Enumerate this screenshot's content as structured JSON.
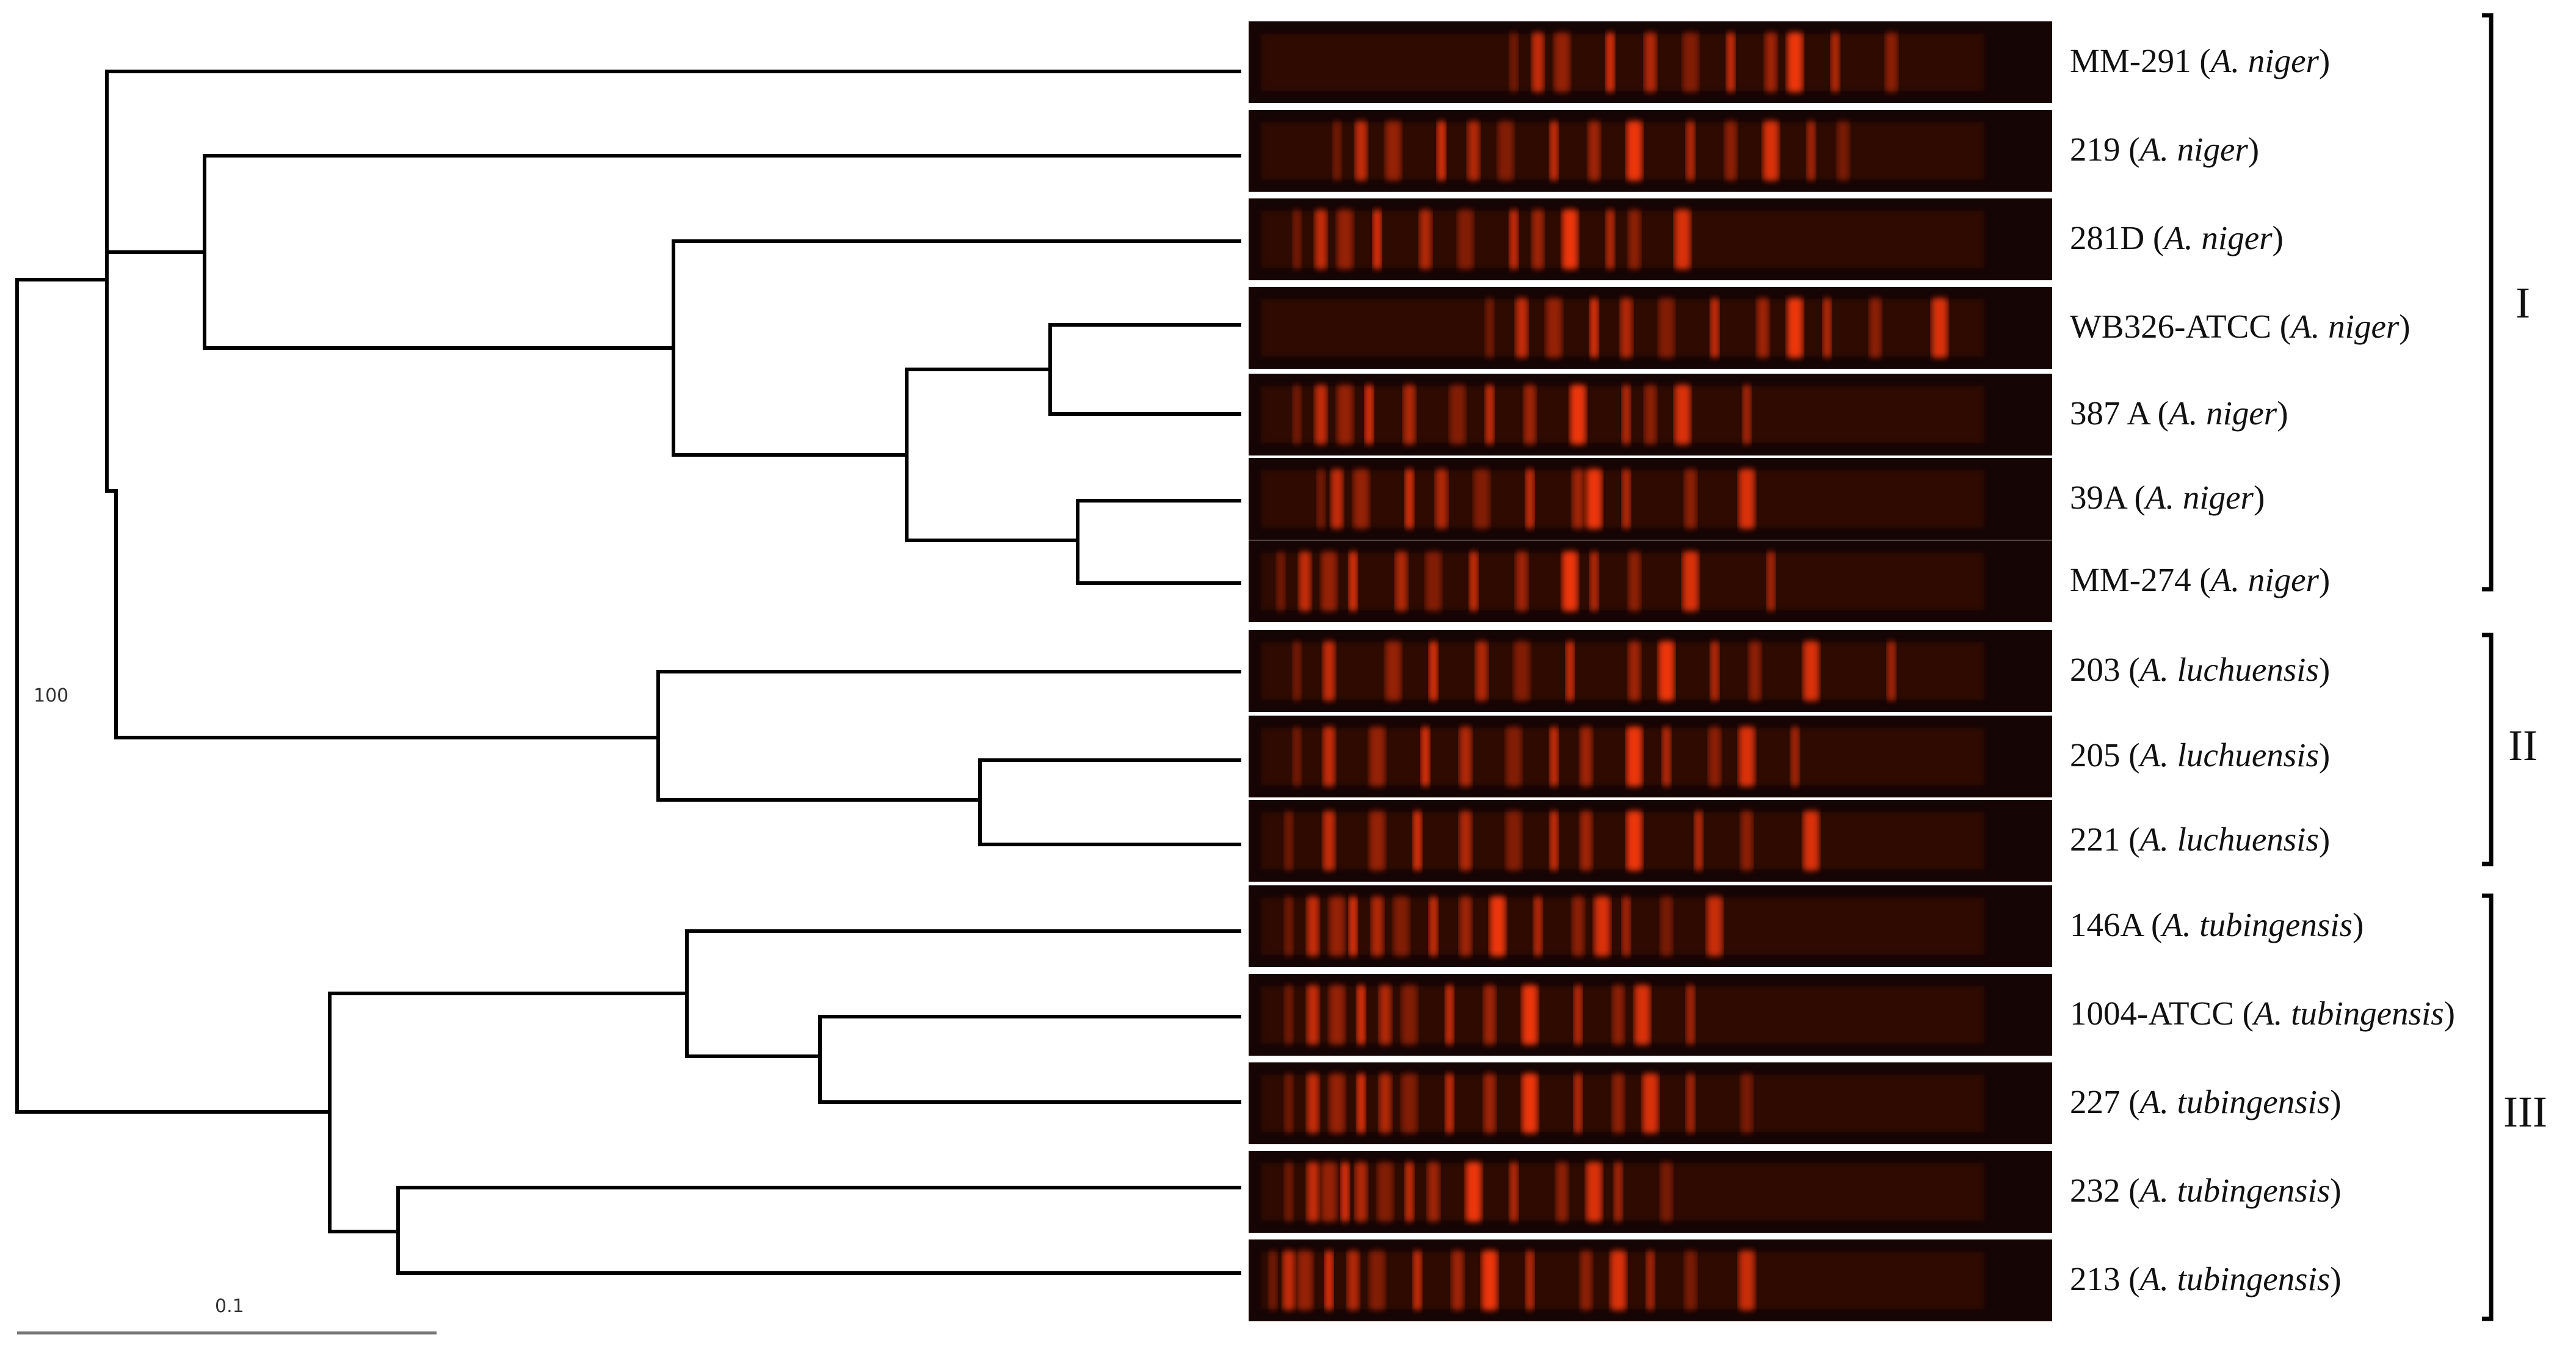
{
  "tree": {
    "bootstrap_value": "100",
    "scale_label": "0.1"
  },
  "samples": [
    {
      "id": "MM-291",
      "species": "A. niger",
      "bands": [
        0.33,
        0.36,
        0.39,
        0.45,
        0.5,
        0.55,
        0.6,
        0.65,
        0.68,
        0.73,
        0.8
      ]
    },
    {
      "id": "219",
      "species": "A. niger",
      "bands": [
        0.11,
        0.14,
        0.18,
        0.24,
        0.28,
        0.32,
        0.38,
        0.43,
        0.48,
        0.55,
        0.6,
        0.65,
        0.7,
        0.74
      ]
    },
    {
      "id": "281D",
      "species": "A. niger",
      "bands": [
        0.06,
        0.09,
        0.12,
        0.16,
        0.22,
        0.27,
        0.33,
        0.36,
        0.4,
        0.45,
        0.48,
        0.54
      ]
    },
    {
      "id": "WB326-ATCC",
      "species": "A. niger",
      "bands": [
        0.3,
        0.34,
        0.38,
        0.43,
        0.47,
        0.52,
        0.58,
        0.64,
        0.68,
        0.72,
        0.78,
        0.86
      ]
    },
    {
      "id": "387 A",
      "species": "A. niger",
      "bands": [
        0.06,
        0.09,
        0.12,
        0.15,
        0.2,
        0.26,
        0.3,
        0.35,
        0.41,
        0.47,
        0.5,
        0.54,
        0.62
      ]
    },
    {
      "id": "39A",
      "species": "A. niger",
      "bands": [
        0.09,
        0.11,
        0.14,
        0.2,
        0.24,
        0.29,
        0.35,
        0.41,
        0.43,
        0.47,
        0.55,
        0.62
      ]
    },
    {
      "id": "MM-274",
      "species": "A. niger",
      "bands": [
        0.04,
        0.07,
        0.1,
        0.13,
        0.19,
        0.23,
        0.28,
        0.34,
        0.4,
        0.43,
        0.48,
        0.55,
        0.65
      ]
    },
    {
      "id": "203",
      "species": "A. luchuensis",
      "bands": [
        0.06,
        0.1,
        0.18,
        0.23,
        0.29,
        0.34,
        0.4,
        0.48,
        0.52,
        0.58,
        0.63,
        0.7,
        0.8
      ]
    },
    {
      "id": "205",
      "species": "A. luchuensis",
      "bands": [
        0.06,
        0.1,
        0.16,
        0.22,
        0.27,
        0.33,
        0.38,
        0.42,
        0.48,
        0.52,
        0.58,
        0.62,
        0.68
      ]
    },
    {
      "id": "221",
      "species": "A. luchuensis",
      "bands": [
        0.05,
        0.1,
        0.16,
        0.21,
        0.27,
        0.33,
        0.38,
        0.42,
        0.48,
        0.56,
        0.62,
        0.7
      ]
    },
    {
      "id": "146A",
      "species": "A. tubingensis",
      "bands": [
        0.05,
        0.08,
        0.11,
        0.13,
        0.16,
        0.19,
        0.23,
        0.27,
        0.31,
        0.36,
        0.41,
        0.44,
        0.47,
        0.52,
        0.58
      ]
    },
    {
      "id": "1004-ATCC",
      "species": "A. tubingensis",
      "bands": [
        0.05,
        0.08,
        0.11,
        0.14,
        0.17,
        0.2,
        0.25,
        0.3,
        0.35,
        0.41,
        0.46,
        0.49,
        0.55
      ]
    },
    {
      "id": "227",
      "species": "A. tubingensis",
      "bands": [
        0.05,
        0.08,
        0.11,
        0.14,
        0.17,
        0.2,
        0.25,
        0.3,
        0.35,
        0.41,
        0.46,
        0.5,
        0.55,
        0.62
      ]
    },
    {
      "id": "232",
      "species": "A. tubingensis",
      "bands": [
        0.05,
        0.08,
        0.1,
        0.12,
        0.14,
        0.17,
        0.2,
        0.23,
        0.28,
        0.33,
        0.39,
        0.43,
        0.46,
        0.52
      ]
    },
    {
      "id": "213",
      "species": "A. tubingensis",
      "bands": [
        0.03,
        0.05,
        0.07,
        0.1,
        0.13,
        0.16,
        0.21,
        0.26,
        0.3,
        0.35,
        0.42,
        0.46,
        0.5,
        0.55,
        0.62
      ]
    }
  ],
  "clades": [
    {
      "label": "I"
    },
    {
      "label": "II"
    },
    {
      "label": "III"
    }
  ],
  "colors": {
    "gel_background": "#150505",
    "band": "#ff3a10",
    "tree_line": "#000000"
  }
}
